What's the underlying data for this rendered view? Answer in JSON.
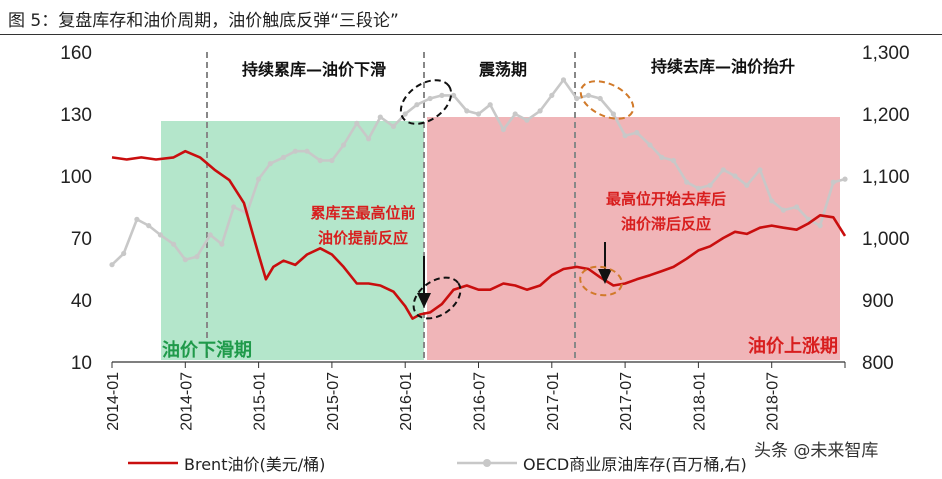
{
  "title": "图 5：复盘库存和油价周期，油价触底反弹“三段论”",
  "watermark": "头条 @未来智库",
  "colors": {
    "brent": "#c90e0e",
    "oecd": "#c8c8c8",
    "green_zone": "#b4e6cb",
    "red_zone": "#f0b5b8",
    "phase_line": "#888888"
  },
  "phases": {
    "phase1": "持续累库—油价下滑",
    "phase2": "震荡期",
    "phase3": "持续去库—油价抬升"
  },
  "zones": {
    "green": "油价下滑期",
    "red": "油价上涨期"
  },
  "annotations": {
    "a1_line1": "累库至最高位前",
    "a1_line2": "油价提前反应",
    "a2_line1": "最高位开始去库后",
    "a2_line2": "油价滞后反应"
  },
  "chart_data": {
    "type": "line",
    "x_ticks": [
      "2014-01",
      "2014-07",
      "2015-01",
      "2015-07",
      "2016-01",
      "2016-07",
      "2017-01",
      "2017-07",
      "2018-01",
      "2018-07"
    ],
    "y_left": {
      "ylim": [
        10,
        160
      ],
      "ticks": [
        10,
        40,
        70,
        100,
        130,
        160
      ]
    },
    "y_right": {
      "ylim": [
        800,
        1300
      ],
      "ticks": [
        "800",
        "900",
        "1,000",
        "1,100",
        "1,200",
        "1,300"
      ]
    },
    "series": [
      {
        "name": "Brent油价(美元/桶)",
        "axis": "left",
        "x": [
          2014.0,
          2014.1,
          2014.2,
          2014.3,
          2014.42,
          2014.5,
          2014.6,
          2014.7,
          2014.8,
          2014.9,
          2015.0,
          2015.05,
          2015.1,
          2015.17,
          2015.25,
          2015.33,
          2015.42,
          2015.5,
          2015.58,
          2015.67,
          2015.75,
          2015.83,
          2015.92,
          2016.0,
          2016.05,
          2016.1,
          2016.17,
          2016.25,
          2016.33,
          2016.42,
          2016.5,
          2016.58,
          2016.67,
          2016.75,
          2016.83,
          2016.92,
          2017.0,
          2017.08,
          2017.17,
          2017.25,
          2017.33,
          2017.42,
          2017.5,
          2017.58,
          2017.67,
          2017.75,
          2017.83,
          2017.92,
          2018.0,
          2018.08,
          2018.17,
          2018.25,
          2018.33,
          2018.42,
          2018.5,
          2018.58,
          2018.67,
          2018.75,
          2018.83,
          2018.92,
          2019.0
        ],
        "y": [
          109,
          108,
          109,
          108,
          109,
          112,
          109,
          103,
          98,
          87,
          62,
          50,
          56,
          59,
          57,
          62,
          65,
          62,
          56,
          48,
          48,
          47,
          44,
          37,
          31,
          33,
          34,
          38,
          45,
          47,
          45,
          45,
          48,
          47,
          45,
          47,
          52,
          55,
          56,
          55,
          51,
          47,
          48,
          50,
          52,
          54,
          56,
          60,
          64,
          66,
          70,
          73,
          72,
          75,
          76,
          75,
          74,
          77,
          81,
          80,
          71
        ]
      },
      {
        "name": "OECD商业原油库存(百万桶,右)",
        "axis": "right",
        "x": [
          2014.0,
          2014.08,
          2014.17,
          2014.25,
          2014.33,
          2014.42,
          2014.5,
          2014.58,
          2014.67,
          2014.75,
          2014.83,
          2014.92,
          2015.0,
          2015.08,
          2015.17,
          2015.25,
          2015.33,
          2015.42,
          2015.5,
          2015.58,
          2015.67,
          2015.75,
          2015.83,
          2015.92,
          2016.0,
          2016.08,
          2016.17,
          2016.25,
          2016.33,
          2016.42,
          2016.5,
          2016.58,
          2016.67,
          2016.75,
          2016.83,
          2016.92,
          2017.0,
          2017.08,
          2017.17,
          2017.25,
          2017.33,
          2017.42,
          2017.5,
          2017.58,
          2017.67,
          2017.75,
          2017.83,
          2017.92,
          2018.0,
          2018.08,
          2018.17,
          2018.25,
          2018.33,
          2018.42,
          2018.5,
          2018.58,
          2018.67,
          2018.75,
          2018.83,
          2018.92,
          2019.0
        ],
        "y": [
          957,
          975,
          1030,
          1020,
          1005,
          990,
          965,
          970,
          1005,
          990,
          1050,
          1040,
          1095,
          1120,
          1130,
          1140,
          1140,
          1125,
          1125,
          1150,
          1185,
          1160,
          1195,
          1180,
          1200,
          1215,
          1225,
          1230,
          1230,
          1205,
          1200,
          1215,
          1175,
          1200,
          1190,
          1205,
          1230,
          1255,
          1225,
          1230,
          1225,
          1200,
          1165,
          1170,
          1150,
          1130,
          1125,
          1090,
          1080,
          1085,
          1110,
          1100,
          1085,
          1110,
          1060,
          1045,
          1050,
          1030,
          1020,
          1090,
          1095
        ]
      }
    ],
    "legend_position": "bottom"
  }
}
